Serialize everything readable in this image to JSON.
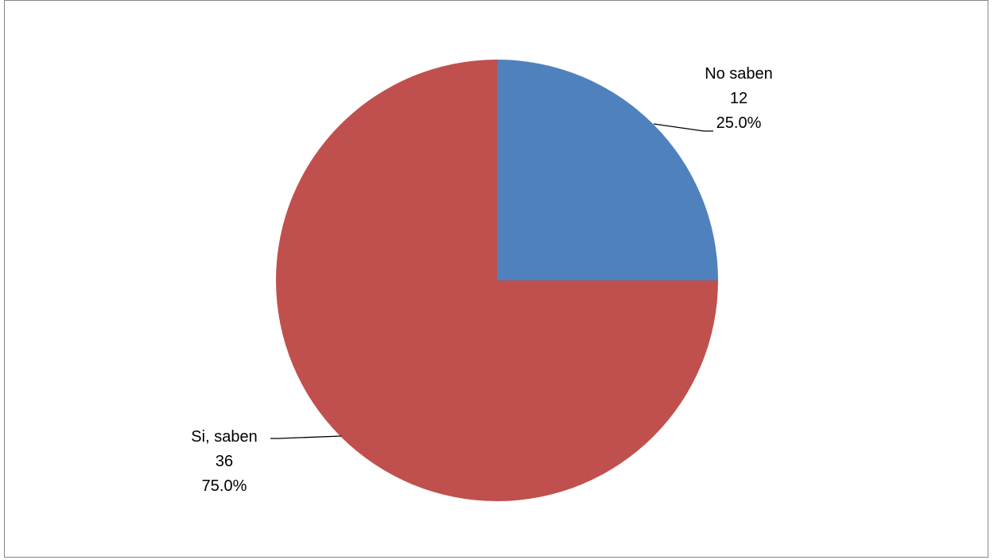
{
  "chart_data": {
    "type": "pie",
    "title": "",
    "slices": [
      {
        "label": "No saben",
        "value": 12,
        "percent": "25.0%",
        "color": "#4F81BD"
      },
      {
        "label": "Si, saben",
        "value": 36,
        "percent": "75.0%",
        "color": "#C0504D"
      }
    ],
    "start_angle": "12 o'clock",
    "direction": "clockwise",
    "legend": "none",
    "data_labels": "category name, value, percentage with leader lines"
  }
}
